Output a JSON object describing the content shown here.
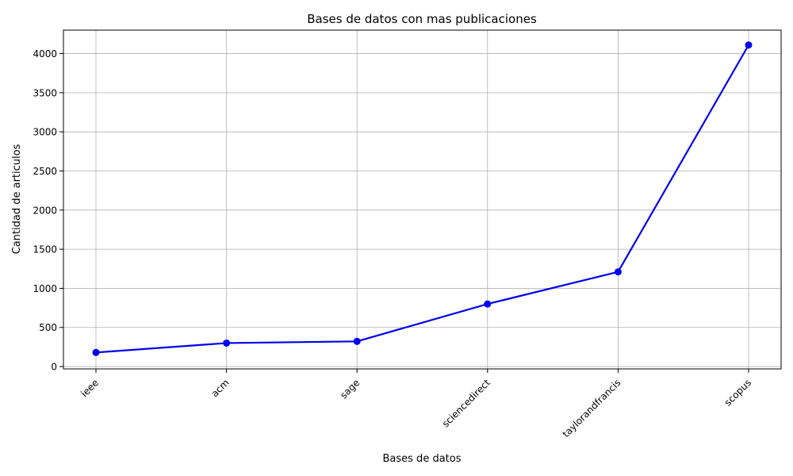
{
  "chart_data": {
    "type": "line",
    "title": "Bases de datos con mas publicaciones",
    "xlabel": "Bases de datos",
    "ylabel": "Cantidad de articulos",
    "categories": [
      "ieee",
      "acm",
      "sage",
      "sciencedirect",
      "taylorandfrancis",
      "scopus"
    ],
    "series": [
      {
        "values": [
          180,
          300,
          322,
          800,
          1210,
          4110
        ]
      }
    ],
    "ylim": [
      -30,
      4300
    ],
    "yticks": [
      0,
      500,
      1000,
      1500,
      2000,
      2500,
      3000,
      3500,
      4000
    ],
    "grid": true,
    "line_color": "#0000ee",
    "marker": "circle",
    "xtick_rotation": "45deg"
  }
}
